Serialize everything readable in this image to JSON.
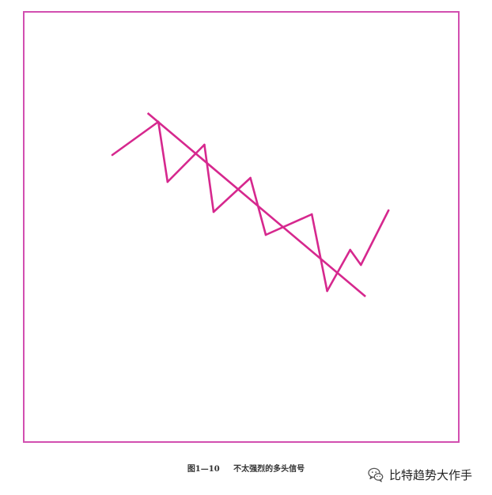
{
  "figure": {
    "caption_number": "图1—10",
    "caption_text": "不太强烈的多头信号",
    "line_color": "#d6288e",
    "frame_color": "#d24fb0",
    "price_path": [
      {
        "x": 1.0,
        "y": 100
      },
      {
        "x": 4.0,
        "y": 142
      },
      {
        "x": 4.6,
        "y": 66
      },
      {
        "x": 7.0,
        "y": 113
      },
      {
        "x": 7.6,
        "y": 28
      },
      {
        "x": 10.0,
        "y": 71
      },
      {
        "x": 11.0,
        "y": -1
      },
      {
        "x": 14.0,
        "y": 25
      },
      {
        "x": 15.0,
        "y": -72
      },
      {
        "x": 16.5,
        "y": -20
      },
      {
        "x": 17.2,
        "y": -39
      },
      {
        "x": 19.0,
        "y": 30
      }
    ],
    "trendline": [
      {
        "x": 3.3,
        "y": 153
      },
      {
        "x": 17.5,
        "y": -79
      }
    ]
  },
  "watermark": {
    "icon": "wechat-icon",
    "text": "比特趋势大作手"
  }
}
